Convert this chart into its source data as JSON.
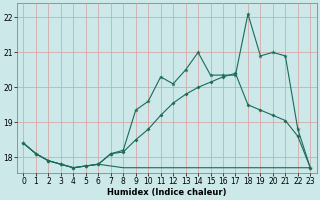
{
  "xlabel": "Humidex (Indice chaleur)",
  "xlim": [
    -0.5,
    23.5
  ],
  "ylim": [
    17.55,
    22.4
  ],
  "yticks": [
    18,
    19,
    20,
    21,
    22
  ],
  "xticks": [
    0,
    1,
    2,
    3,
    4,
    5,
    6,
    7,
    8,
    9,
    10,
    11,
    12,
    13,
    14,
    15,
    16,
    17,
    18,
    19,
    20,
    21,
    22,
    23
  ],
  "bg_color": "#cce8e8",
  "grid_color_major": "#d4a0a0",
  "grid_color_minor": "#b8d4d4",
  "line_color": "#1a6b58",
  "line1_y": [
    18.4,
    18.1,
    17.9,
    17.8,
    17.7,
    17.75,
    17.8,
    17.75,
    17.7,
    17.7,
    17.7,
    17.7,
    17.7,
    17.7,
    17.7,
    17.7,
    17.7,
    17.7,
    17.7,
    17.7,
    17.7,
    17.7,
    17.7,
    17.7
  ],
  "line2_y": [
    18.4,
    18.1,
    17.9,
    17.8,
    17.7,
    17.75,
    17.8,
    18.1,
    18.15,
    18.5,
    18.8,
    19.2,
    19.55,
    19.8,
    20.0,
    20.15,
    20.3,
    20.4,
    19.5,
    19.35,
    19.2,
    19.05,
    18.6,
    17.7
  ],
  "line3_y": [
    18.4,
    18.1,
    17.9,
    17.8,
    17.7,
    17.75,
    17.8,
    18.1,
    18.2,
    19.35,
    19.6,
    20.3,
    20.1,
    20.5,
    21.0,
    20.35,
    20.35,
    20.35,
    22.1,
    20.9,
    21.0,
    20.9,
    18.8,
    17.7
  ],
  "xlabel_fontsize": 6.0,
  "tick_fontsize": 5.5
}
